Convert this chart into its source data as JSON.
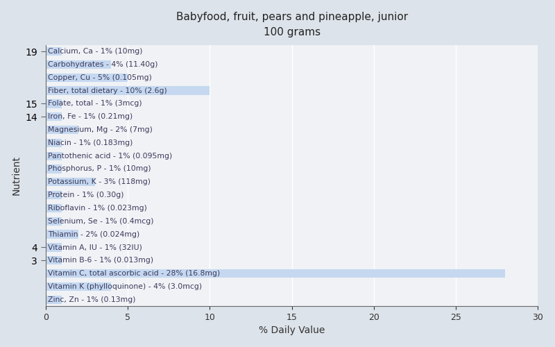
{
  "title_line1": "Babyfood, fruit, pears and pineapple, junior",
  "title_line2": "100 grams",
  "xlabel": "% Daily Value",
  "ylabel": "Nutrient",
  "background_color": "#dde3ea",
  "bar_color": "#c5d8f0",
  "plot_bg_color": "#f0f2f5",
  "xlim": [
    0,
    30
  ],
  "xticks": [
    0,
    5,
    10,
    15,
    20,
    25,
    30
  ],
  "nutrients": [
    {
      "label": "Calcium, Ca - 1% (10mg)",
      "value": 1
    },
    {
      "label": "Carbohydrates - 4% (11.40g)",
      "value": 4
    },
    {
      "label": "Copper, Cu - 5% (0.105mg)",
      "value": 5
    },
    {
      "label": "Fiber, total dietary - 10% (2.6g)",
      "value": 10
    },
    {
      "label": "Folate, total - 1% (3mcg)",
      "value": 1
    },
    {
      "label": "Iron, Fe - 1% (0.21mg)",
      "value": 1
    },
    {
      "label": "Magnesium, Mg - 2% (7mg)",
      "value": 2
    },
    {
      "label": "Niacin - 1% (0.183mg)",
      "value": 1
    },
    {
      "label": "Pantothenic acid - 1% (0.095mg)",
      "value": 1
    },
    {
      "label": "Phosphorus, P - 1% (10mg)",
      "value": 1
    },
    {
      "label": "Potassium, K - 3% (118mg)",
      "value": 3
    },
    {
      "label": "Protein - 1% (0.30g)",
      "value": 1
    },
    {
      "label": "Riboflavin - 1% (0.023mg)",
      "value": 1
    },
    {
      "label": "Selenium, Se - 1% (0.4mcg)",
      "value": 1
    },
    {
      "label": "Thiamin - 2% (0.024mg)",
      "value": 2
    },
    {
      "label": "Vitamin A, IU - 1% (32IU)",
      "value": 1
    },
    {
      "label": "Vitamin B-6 - 1% (0.013mg)",
      "value": 1
    },
    {
      "label": "Vitamin C, total ascorbic acid - 28% (16.8mg)",
      "value": 28
    },
    {
      "label": "Vitamin K (phylloquinone) - 4% (3.0mcg)",
      "value": 4
    },
    {
      "label": "Zinc, Zn - 1% (0.13mg)",
      "value": 1
    }
  ],
  "label_color": "#3a3a5c",
  "text_fontsize": 7.8,
  "title_fontsize": 11,
  "bar_height": 0.65,
  "grid_color": "#ffffff",
  "spine_color": "#666666"
}
